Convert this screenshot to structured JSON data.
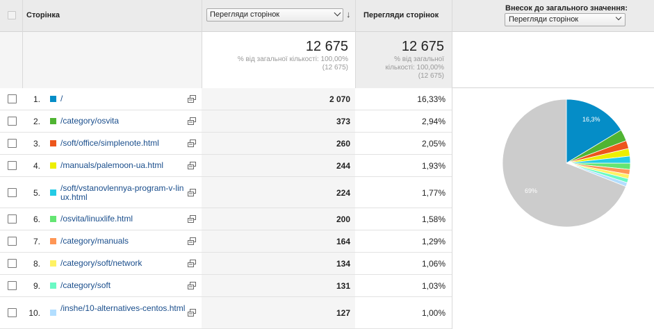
{
  "header": {
    "page_column": "Сторінка",
    "primary_metric_select": "Перегляди сторінок",
    "metric_column": "Перегляди сторінок",
    "contribution_label": "Внесок до загального значення:",
    "contribution_select": "Перегляди сторінок"
  },
  "summary": {
    "total1": "12 675",
    "pct1_line1": "% від загальної кількості: 100,00%",
    "pct1_line2": "(12 675)",
    "total2": "12 675",
    "pct2_line1": "% від загальної",
    "pct2_line2": "кількості: 100,00%",
    "pct2_line3": "(12 675)"
  },
  "rows": [
    {
      "num": "1.",
      "page": "/",
      "views": "2 070",
      "pct": "16,33%",
      "color": "#058dc7"
    },
    {
      "num": "2.",
      "page": "/category/osvita",
      "views": "373",
      "pct": "2,94%",
      "color": "#50b432"
    },
    {
      "num": "3.",
      "page": "/soft/office/simplenote.html",
      "views": "260",
      "pct": "2,05%",
      "color": "#ed561b"
    },
    {
      "num": "4.",
      "page": "/manuals/palemoon-ua.html",
      "views": "244",
      "pct": "1,93%",
      "color": "#edef00"
    },
    {
      "num": "5.",
      "page": "/soft/vstanovlennya-program-v-linux.html",
      "views": "224",
      "pct": "1,77%",
      "color": "#24cbe5"
    },
    {
      "num": "6.",
      "page": "/osvita/linuxlife.html",
      "views": "200",
      "pct": "1,58%",
      "color": "#64e572"
    },
    {
      "num": "7.",
      "page": "/category/manuals",
      "views": "164",
      "pct": "1,29%",
      "color": "#ff9655"
    },
    {
      "num": "8.",
      "page": "/category/soft/network",
      "views": "134",
      "pct": "1,06%",
      "color": "#fff263"
    },
    {
      "num": "9.",
      "page": "/category/soft",
      "views": "131",
      "pct": "1,03%",
      "color": "#6af9c4"
    },
    {
      "num": "10.",
      "page": "/inshe/10-alternatives-centos.html",
      "views": "127",
      "pct": "1,00%",
      "color": "#b2deff"
    }
  ],
  "chart_data": {
    "type": "pie",
    "slices": [
      {
        "value": 16.33,
        "color": "#058dc7"
      },
      {
        "value": 2.94,
        "color": "#50b432"
      },
      {
        "value": 2.05,
        "color": "#ed561b"
      },
      {
        "value": 1.93,
        "color": "#edef00"
      },
      {
        "value": 1.77,
        "color": "#24cbe5"
      },
      {
        "value": 1.58,
        "color": "#64e572"
      },
      {
        "value": 1.29,
        "color": "#ff9655"
      },
      {
        "value": 1.06,
        "color": "#fff263"
      },
      {
        "value": 1.03,
        "color": "#6af9c4"
      },
      {
        "value": 1.0,
        "color": "#b2deff"
      },
      {
        "value": 69.02,
        "color": "#cccccc"
      }
    ],
    "data_labels": [
      "16,3%",
      "69%"
    ]
  }
}
